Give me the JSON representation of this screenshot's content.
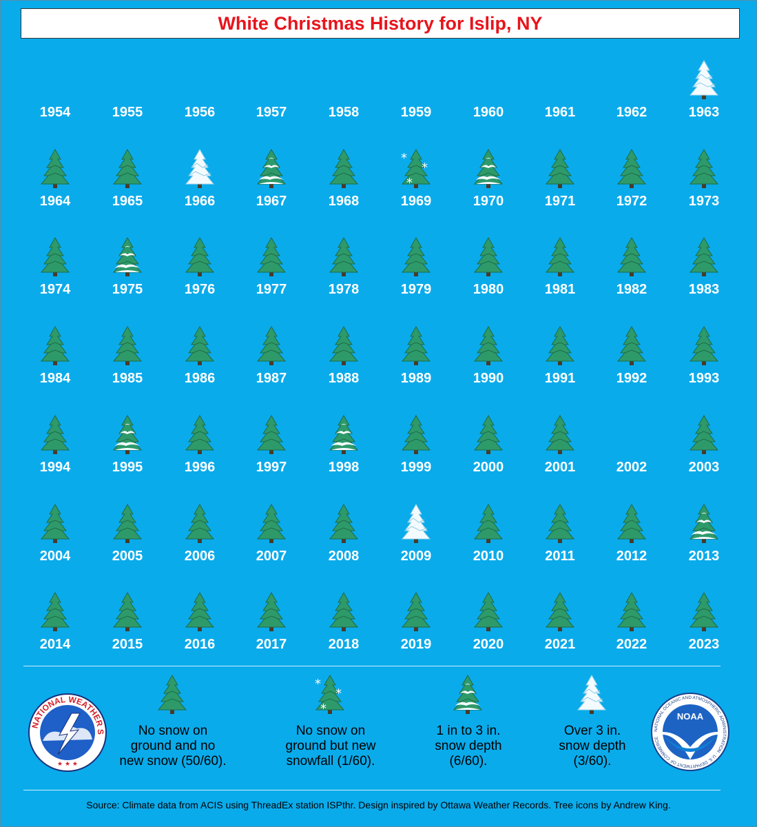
{
  "title": "White Christmas History for Islip, NY",
  "chart_data": {
    "type": "table",
    "categories": {
      "none": "No snow on ground and no new snow (50/60).",
      "new_snow": "No snow on ground but new snowfall (1/60).",
      "one_to_three": "1 in to 3 in. snow depth (6/60).",
      "over_three": "Over 3 in. snow depth (3/60)."
    },
    "years": [
      {
        "year": "1954",
        "cat": ""
      },
      {
        "year": "1955",
        "cat": ""
      },
      {
        "year": "1956",
        "cat": ""
      },
      {
        "year": "1957",
        "cat": ""
      },
      {
        "year": "1958",
        "cat": ""
      },
      {
        "year": "1959",
        "cat": ""
      },
      {
        "year": "1960",
        "cat": ""
      },
      {
        "year": "1961",
        "cat": ""
      },
      {
        "year": "1962",
        "cat": ""
      },
      {
        "year": "1963",
        "cat": "over_three"
      },
      {
        "year": "1964",
        "cat": "none"
      },
      {
        "year": "1965",
        "cat": "none"
      },
      {
        "year": "1966",
        "cat": "over_three"
      },
      {
        "year": "1967",
        "cat": "one_to_three"
      },
      {
        "year": "1968",
        "cat": "none"
      },
      {
        "year": "1969",
        "cat": "new_snow"
      },
      {
        "year": "1970",
        "cat": "one_to_three"
      },
      {
        "year": "1971",
        "cat": "none"
      },
      {
        "year": "1972",
        "cat": "none"
      },
      {
        "year": "1973",
        "cat": "none"
      },
      {
        "year": "1974",
        "cat": "none"
      },
      {
        "year": "1975",
        "cat": "one_to_three"
      },
      {
        "year": "1976",
        "cat": "none"
      },
      {
        "year": "1977",
        "cat": "none"
      },
      {
        "year": "1978",
        "cat": "none"
      },
      {
        "year": "1979",
        "cat": "none"
      },
      {
        "year": "1980",
        "cat": "none"
      },
      {
        "year": "1981",
        "cat": "none"
      },
      {
        "year": "1982",
        "cat": "none"
      },
      {
        "year": "1983",
        "cat": "none"
      },
      {
        "year": "1984",
        "cat": "none"
      },
      {
        "year": "1985",
        "cat": "none"
      },
      {
        "year": "1986",
        "cat": "none"
      },
      {
        "year": "1987",
        "cat": "none"
      },
      {
        "year": "1988",
        "cat": "none"
      },
      {
        "year": "1989",
        "cat": "none"
      },
      {
        "year": "1990",
        "cat": "none"
      },
      {
        "year": "1991",
        "cat": "none"
      },
      {
        "year": "1992",
        "cat": "none"
      },
      {
        "year": "1993",
        "cat": "none"
      },
      {
        "year": "1994",
        "cat": "none"
      },
      {
        "year": "1995",
        "cat": "one_to_three"
      },
      {
        "year": "1996",
        "cat": "none"
      },
      {
        "year": "1997",
        "cat": "none"
      },
      {
        "year": "1998",
        "cat": "one_to_three"
      },
      {
        "year": "1999",
        "cat": "none"
      },
      {
        "year": "2000",
        "cat": "none"
      },
      {
        "year": "2001",
        "cat": "none"
      },
      {
        "year": "2002",
        "cat": ""
      },
      {
        "year": "2003",
        "cat": "none"
      },
      {
        "year": "2004",
        "cat": "none"
      },
      {
        "year": "2005",
        "cat": "none"
      },
      {
        "year": "2006",
        "cat": "none"
      },
      {
        "year": "2007",
        "cat": "none"
      },
      {
        "year": "2008",
        "cat": "none"
      },
      {
        "year": "2009",
        "cat": "over_three"
      },
      {
        "year": "2010",
        "cat": "none"
      },
      {
        "year": "2011",
        "cat": "none"
      },
      {
        "year": "2012",
        "cat": "none"
      },
      {
        "year": "2013",
        "cat": "one_to_three"
      },
      {
        "year": "2014",
        "cat": "none"
      },
      {
        "year": "2015",
        "cat": "none"
      },
      {
        "year": "2016",
        "cat": "none"
      },
      {
        "year": "2017",
        "cat": "none"
      },
      {
        "year": "2018",
        "cat": "none"
      },
      {
        "year": "2019",
        "cat": "none"
      },
      {
        "year": "2020",
        "cat": "none"
      },
      {
        "year": "2021",
        "cat": "none"
      },
      {
        "year": "2022",
        "cat": "none"
      },
      {
        "year": "2023",
        "cat": "none"
      }
    ]
  },
  "legend": {
    "none_l1": "No snow on",
    "none_l2": "ground and no",
    "none_l3": "new snow (50/60).",
    "new_l1": "No snow on",
    "new_l2": "ground but new",
    "new_l3": "snowfall (1/60).",
    "one_l1": "1 in to 3 in.",
    "one_l2": "snow depth",
    "one_l3": "(6/60).",
    "over_l1": "Over 3 in.",
    "over_l2": "snow depth",
    "over_l3": "(3/60)."
  },
  "logos": {
    "nws_text": "NATIONAL WEATHER SERVICE",
    "noaa_text": "NOAA",
    "noaa_ring": "NATIONAL OCEANIC AND ATMOSPHERIC ADMINISTRATION · U.S. DEPARTMENT OF COMMERCE"
  },
  "source": "Source: Climate data from ACIS using ThreadEx station ISPthr. Design inspired by Ottawa Weather Records. Tree icons by Andrew King.",
  "colors": {
    "background": "#0aabeb",
    "title": "#e8141c",
    "tree": "#2e9a6a",
    "snow": "#f4fbff"
  }
}
